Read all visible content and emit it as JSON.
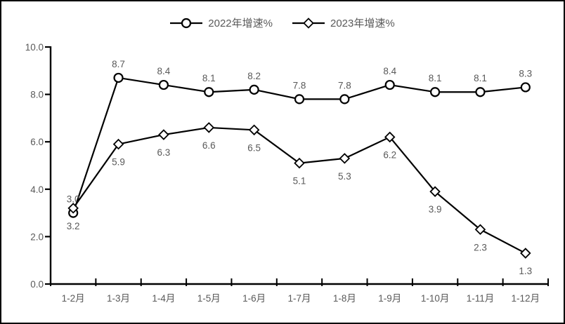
{
  "window": {
    "background": "#ffffff",
    "border_color": "#000000"
  },
  "legend": {
    "items": [
      {
        "label": "2022年增速%",
        "marker": "circle"
      },
      {
        "label": "2023年增速%",
        "marker": "diamond"
      }
    ]
  },
  "chart_data": {
    "type": "line",
    "title": "",
    "categories": [
      "1-2月",
      "1-3月",
      "1-4月",
      "1-5月",
      "1-6月",
      "1-7月",
      "1-8月",
      "1-9月",
      "1-10月",
      "1-11月",
      "1-12月"
    ],
    "series": [
      {
        "name": "2022年增速%",
        "marker": "circle",
        "label_position": "above",
        "values": [
          3.0,
          8.7,
          8.4,
          8.1,
          8.2,
          7.8,
          7.8,
          8.4,
          8.1,
          8.1,
          8.3
        ]
      },
      {
        "name": "2023年增速%",
        "marker": "diamond",
        "label_position": "below",
        "values": [
          3.2,
          5.9,
          6.3,
          6.6,
          6.5,
          5.1,
          5.3,
          6.2,
          3.9,
          2.3,
          1.3
        ]
      }
    ],
    "xlabel": "",
    "ylabel": "",
    "ylim": [
      0.0,
      10.0
    ],
    "ytick_interval": 2.0,
    "ytick_labels": [
      "0.0",
      "2.0",
      "4.0",
      "6.0",
      "8.0",
      "10.0"
    ],
    "grid": false,
    "legend_position": "top-center",
    "value_label_decimals": 1,
    "colors": {
      "line": "#000000",
      "marker_fill": "#ffffff",
      "axis": "#000000",
      "text": "#595959"
    }
  }
}
